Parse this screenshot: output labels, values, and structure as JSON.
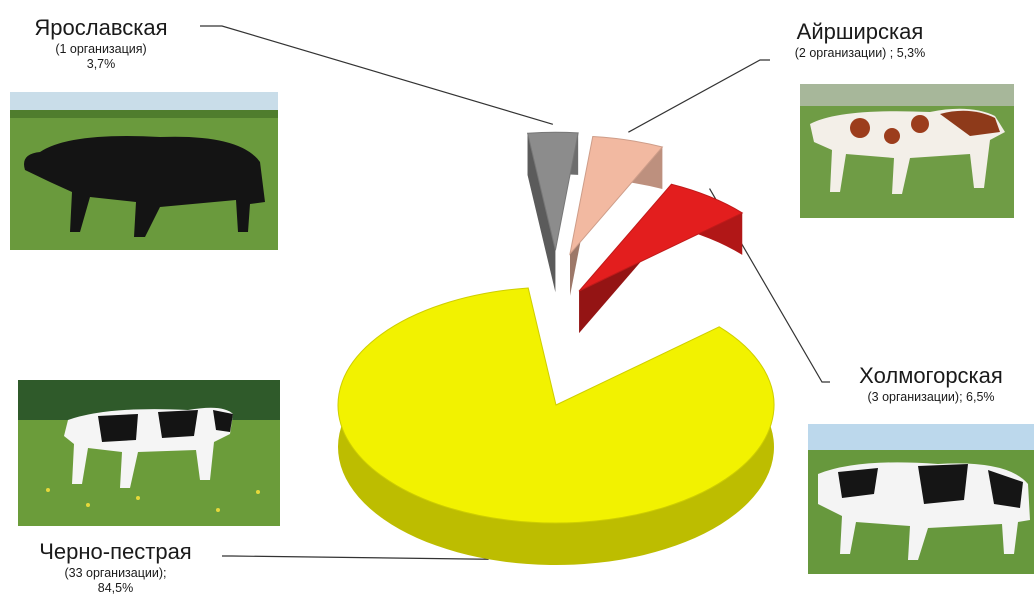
{
  "chart_data": {
    "type": "pie",
    "title": "",
    "slices": [
      {
        "name": "Ярославская",
        "detail": "(1 организация)",
        "percent_label": "3,7%",
        "value": 3.7,
        "color": "#8c8c8c"
      },
      {
        "name": "Айрширская",
        "detail": "(2 организации) ; 5,3%",
        "percent_label": "",
        "value": 5.3,
        "color": "#f2b9a1"
      },
      {
        "name": "Холмогорская",
        "detail": "(3 организации); 6,5%",
        "percent_label": "",
        "value": 6.5,
        "color": "#e31e1e"
      },
      {
        "name": "Черно-пестрая",
        "detail": "(33 организации);",
        "percent_label": "84,5%",
        "value": 84.5,
        "color": "#f2f200"
      }
    ]
  },
  "photos": [
    {
      "breed": "Ярославская",
      "icon": "black-cow-photo"
    },
    {
      "breed": "Айрширская",
      "icon": "red-white-cow-photo"
    },
    {
      "breed": "Холмогорская",
      "icon": "black-white-cow-photo"
    },
    {
      "breed": "Черно-пестрая",
      "icon": "black-white-cow-photo"
    }
  ]
}
